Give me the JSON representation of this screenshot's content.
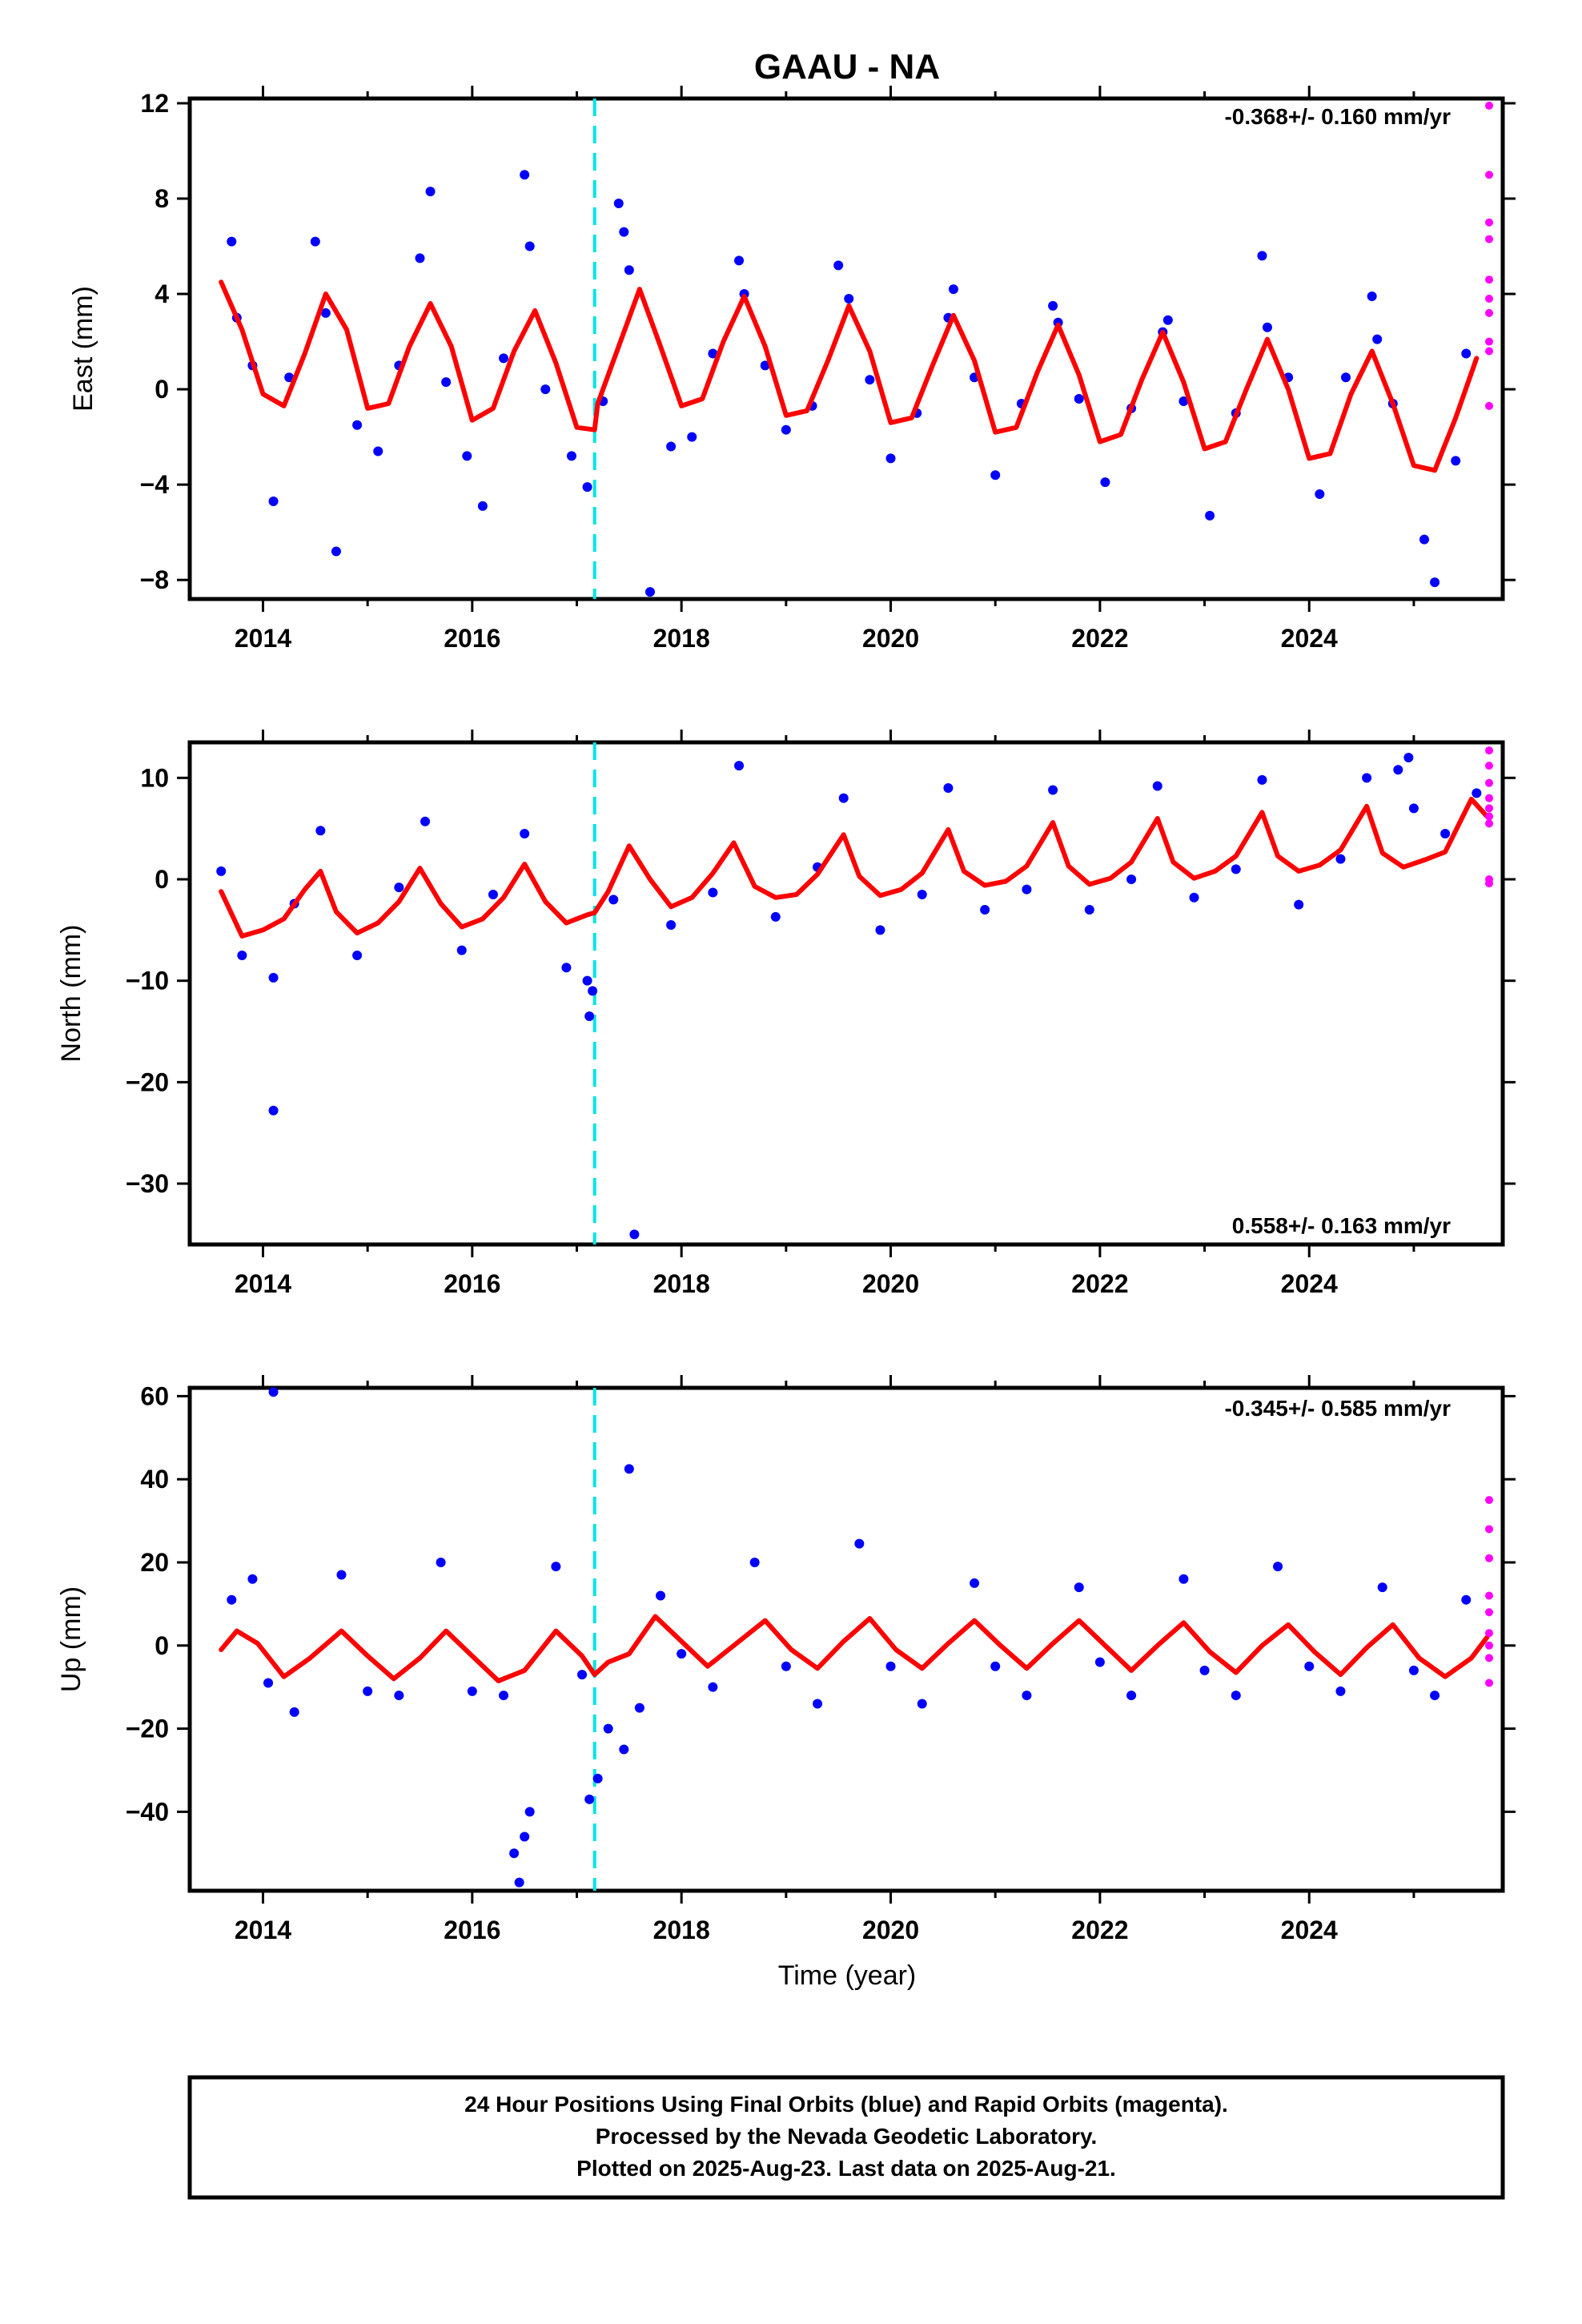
{
  "title": "GAAU - NA",
  "xlabel": "Time (year)",
  "x_tick_labels": [
    "2014",
    "2016",
    "2018",
    "2020",
    "2022",
    "2024"
  ],
  "footer": {
    "line1": "24 Hour Positions Using Final Orbits (blue) and Rapid Orbits (magenta).",
    "line2": "Processed by the Nevada Geodetic Laboratory.",
    "line3": "Plotted on 2025-Aug-23. Last data on 2025-Aug-21."
  },
  "colors": {
    "final_orbits": "#0000ff",
    "rapid_orbits": "#ff00ff",
    "model_fit": "#ff0000",
    "event_line": "#00e5e5"
  },
  "chart_data": [
    {
      "type": "scatter",
      "ylabel": "East (mm)",
      "rate_text": "-0.368+/- 0.160 mm/yr",
      "xlim": [
        2013.3,
        2025.85
      ],
      "ylim": [
        -8.8,
        12.2
      ],
      "y_ticks": [
        -8,
        -4,
        0,
        4,
        8,
        12
      ],
      "y_tick_labels": [
        "−8",
        "−4",
        "0",
        "4",
        "8",
        "12"
      ],
      "x_ticks": [
        2014,
        2016,
        2018,
        2020,
        2022,
        2024
      ],
      "event_x": 2017.17,
      "fit": {
        "name": "model",
        "x": [
          2013.6,
          2013.8,
          2014.0,
          2014.2,
          2014.4,
          2014.6,
          2014.8,
          2015.0,
          2015.2,
          2015.4,
          2015.6,
          2015.8,
          2016.0,
          2016.2,
          2016.4,
          2016.6,
          2016.8,
          2017.0,
          2017.17,
          2017.2,
          2017.4,
          2017.6,
          2017.8,
          2018.0,
          2018.2,
          2018.4,
          2018.6,
          2018.8,
          2019.0,
          2019.2,
          2019.4,
          2019.6,
          2019.8,
          2020.0,
          2020.2,
          2020.4,
          2020.6,
          2020.8,
          2021.0,
          2021.2,
          2021.4,
          2021.6,
          2021.8,
          2022.0,
          2022.2,
          2022.4,
          2022.6,
          2022.8,
          2023.0,
          2023.2,
          2023.4,
          2023.6,
          2023.8,
          2024.0,
          2024.2,
          2024.4,
          2024.6,
          2024.8,
          2025.0,
          2025.2,
          2025.4,
          2025.6
        ],
        "y": [
          4.5,
          2.5,
          -0.2,
          -0.7,
          1.5,
          4.0,
          2.5,
          -0.8,
          -0.6,
          1.8,
          3.6,
          1.8,
          -1.3,
          -0.8,
          1.6,
          3.3,
          1.1,
          -1.6,
          -1.7,
          -0.6,
          1.8,
          4.2,
          1.8,
          -0.7,
          -0.4,
          2.0,
          3.9,
          1.8,
          -1.1,
          -0.9,
          1.2,
          3.5,
          1.6,
          -1.4,
          -1.2,
          1.0,
          3.1,
          1.2,
          -1.8,
          -1.6,
          0.7,
          2.7,
          0.6,
          -2.2,
          -1.9,
          0.4,
          2.4,
          0.3,
          -2.5,
          -2.2,
          0.0,
          2.1,
          0.0,
          -2.9,
          -2.7,
          -0.2,
          1.6,
          -0.6,
          -3.2,
          -3.4,
          -1.2,
          1.3
        ]
      },
      "final_points": {
        "name": "final orbits",
        "x": [
          2013.7,
          2013.75,
          2013.9,
          2014.1,
          2014.25,
          2014.5,
          2014.6,
          2014.7,
          2014.9,
          2015.1,
          2015.3,
          2015.5,
          2015.6,
          2015.75,
          2015.95,
          2016.1,
          2016.3,
          2016.5,
          2016.55,
          2016.7,
          2016.95,
          2017.1,
          2017.25,
          2017.4,
          2017.45,
          2017.5,
          2017.7,
          2017.9,
          2018.1,
          2018.3,
          2018.55,
          2018.6,
          2018.8,
          2019.0,
          2019.25,
          2019.5,
          2019.6,
          2019.8,
          2020.0,
          2020.25,
          2020.55,
          2020.6,
          2020.8,
          2021.0,
          2021.25,
          2021.55,
          2021.6,
          2021.8,
          2022.05,
          2022.3,
          2022.6,
          2022.65,
          2022.8,
          2023.05,
          2023.3,
          2023.55,
          2023.6,
          2023.8,
          2024.1,
          2024.35,
          2024.6,
          2024.65,
          2024.8,
          2025.1,
          2025.2,
          2025.4,
          2025.5
        ],
        "y": [
          6.2,
          3.0,
          1.0,
          -4.7,
          0.5,
          6.2,
          3.2,
          -6.8,
          -1.5,
          -2.6,
          1.0,
          5.5,
          8.3,
          0.3,
          -2.8,
          -4.9,
          1.3,
          9.0,
          6.0,
          0.0,
          -2.8,
          -4.1,
          -0.5,
          7.8,
          6.6,
          5.0,
          -8.5,
          -2.4,
          -2.0,
          1.5,
          5.4,
          4.0,
          1.0,
          -1.7,
          -0.7,
          5.2,
          3.8,
          0.4,
          -2.9,
          -1.0,
          3.0,
          4.2,
          0.5,
          -3.6,
          -0.6,
          3.5,
          2.8,
          -0.4,
          -3.9,
          -0.8,
          2.4,
          2.9,
          -0.5,
          -5.3,
          -1.0,
          5.6,
          2.6,
          0.5,
          -4.4,
          0.5,
          3.9,
          2.1,
          -0.6,
          -6.3,
          -8.1,
          -3.0,
          1.5
        ]
      },
      "rapid_points": {
        "name": "rapid orbits",
        "x": [
          2025.72,
          2025.72,
          2025.72,
          2025.72,
          2025.72,
          2025.72,
          2025.72,
          2025.72,
          2025.72,
          2025.72
        ],
        "y": [
          11.9,
          9.0,
          7.0,
          6.3,
          4.6,
          3.8,
          3.2,
          2.0,
          1.6,
          -0.7
        ]
      }
    },
    {
      "type": "scatter",
      "ylabel": "North (mm)",
      "rate_text": "0.558+/- 0.163 mm/yr",
      "xlim": [
        2013.3,
        2025.85
      ],
      "ylim": [
        -36,
        13.5
      ],
      "y_ticks": [
        -30,
        -20,
        -10,
        0,
        10
      ],
      "y_tick_labels": [
        "−30",
        "−20",
        "−10",
        "0",
        "10"
      ],
      "x_ticks": [
        2014,
        2016,
        2018,
        2020,
        2022,
        2024
      ],
      "event_x": 2017.17,
      "fit": {
        "name": "model",
        "x": [
          2013.6,
          2013.8,
          2014.0,
          2014.2,
          2014.4,
          2014.55,
          2014.7,
          2014.9,
          2015.1,
          2015.3,
          2015.5,
          2015.7,
          2015.9,
          2016.1,
          2016.3,
          2016.5,
          2016.7,
          2016.9,
          2017.1,
          2017.17,
          2017.3,
          2017.5,
          2017.7,
          2017.9,
          2018.1,
          2018.3,
          2018.5,
          2018.7,
          2018.9,
          2019.1,
          2019.3,
          2019.55,
          2019.7,
          2019.9,
          2020.1,
          2020.3,
          2020.55,
          2020.7,
          2020.9,
          2021.1,
          2021.3,
          2021.55,
          2021.7,
          2021.9,
          2022.1,
          2022.3,
          2022.55,
          2022.7,
          2022.9,
          2023.1,
          2023.3,
          2023.55,
          2023.7,
          2023.9,
          2024.1,
          2024.3,
          2024.55,
          2024.7,
          2024.9,
          2025.1,
          2025.3,
          2025.55,
          2025.7
        ],
        "y": [
          -1.2,
          -5.6,
          -5.0,
          -3.9,
          -1.0,
          0.8,
          -3.2,
          -5.3,
          -4.3,
          -2.2,
          1.1,
          -2.4,
          -4.7,
          -3.9,
          -1.8,
          1.5,
          -2.2,
          -4.3,
          -3.5,
          -3.3,
          -1.2,
          3.3,
          0.0,
          -2.7,
          -1.8,
          0.6,
          3.6,
          -0.7,
          -1.8,
          -1.5,
          0.5,
          4.4,
          0.3,
          -1.6,
          -1.0,
          0.6,
          4.9,
          0.8,
          -0.6,
          -0.2,
          1.3,
          5.6,
          1.3,
          -0.5,
          0.1,
          1.7,
          6.0,
          1.7,
          0.1,
          0.8,
          2.3,
          6.6,
          2.3,
          0.8,
          1.4,
          2.9,
          7.2,
          2.6,
          1.2,
          1.9,
          2.7,
          7.9,
          6.2
        ]
      },
      "final_points": {
        "name": "final orbits",
        "x": [
          2013.6,
          2013.8,
          2014.1,
          2014.1,
          2014.3,
          2014.55,
          2014.9,
          2015.3,
          2015.55,
          2015.9,
          2016.2,
          2016.5,
          2016.9,
          2017.1,
          2017.12,
          2017.15,
          2017.35,
          2017.55,
          2017.9,
          2018.3,
          2018.55,
          2018.9,
          2019.3,
          2019.55,
          2019.9,
          2020.3,
          2020.55,
          2020.9,
          2021.3,
          2021.55,
          2021.9,
          2022.3,
          2022.55,
          2022.9,
          2023.3,
          2023.55,
          2023.9,
          2024.3,
          2024.55,
          2024.85,
          2024.95,
          2025.0,
          2025.3,
          2025.6
        ],
        "y": [
          0.8,
          -7.5,
          -9.7,
          -22.8,
          -2.4,
          4.8,
          -7.5,
          -0.8,
          5.7,
          -7.0,
          -1.5,
          4.5,
          -8.7,
          -10.0,
          -13.5,
          -11.0,
          -2.0,
          -35.0,
          -4.5,
          -1.3,
          11.2,
          -3.7,
          1.2,
          8.0,
          -5.0,
          -1.5,
          9.0,
          -3.0,
          -1.0,
          8.8,
          -3.0,
          0.0,
          9.2,
          -1.8,
          1.0,
          9.8,
          -2.5,
          2.0,
          10.0,
          10.8,
          12.0,
          7.0,
          4.5,
          8.5
        ]
      },
      "rapid_points": {
        "name": "rapid orbits",
        "x": [
          2025.72,
          2025.72,
          2025.72,
          2025.72,
          2025.72,
          2025.72,
          2025.72,
          2025.72,
          2025.72
        ],
        "y": [
          12.7,
          11.2,
          9.5,
          8.0,
          7.0,
          6.2,
          5.5,
          0.0,
          -0.4
        ]
      }
    },
    {
      "type": "scatter",
      "ylabel": "Up (mm)",
      "rate_text": "-0.345+/- 0.585 mm/yr",
      "xlim": [
        2013.3,
        2025.85
      ],
      "ylim": [
        -59,
        62
      ],
      "y_ticks": [
        -40,
        -20,
        0,
        20,
        40,
        60
      ],
      "y_tick_labels": [
        "−40",
        "−20",
        "0",
        "20",
        "40",
        "60"
      ],
      "x_ticks": [
        2014,
        2016,
        2018,
        2020,
        2022,
        2024
      ],
      "event_x": 2017.17,
      "fit": {
        "name": "model",
        "x": [
          2013.6,
          2013.75,
          2013.95,
          2014.2,
          2014.45,
          2014.75,
          2015.0,
          2015.25,
          2015.5,
          2015.75,
          2016.0,
          2016.25,
          2016.5,
          2016.8,
          2017.05,
          2017.17,
          2017.3,
          2017.5,
          2017.75,
          2018.0,
          2018.25,
          2018.5,
          2018.8,
          2019.05,
          2019.3,
          2019.55,
          2019.8,
          2020.05,
          2020.3,
          2020.55,
          2020.8,
          2021.05,
          2021.3,
          2021.55,
          2021.8,
          2022.05,
          2022.3,
          2022.55,
          2022.8,
          2023.05,
          2023.3,
          2023.55,
          2023.8,
          2024.05,
          2024.3,
          2024.55,
          2024.8,
          2025.05,
          2025.3,
          2025.55,
          2025.7
        ],
        "y": [
          -1.0,
          3.5,
          0.5,
          -7.5,
          -3.0,
          3.5,
          -2.5,
          -8.0,
          -3.0,
          3.5,
          -2.5,
          -8.5,
          -6.0,
          3.5,
          -2.5,
          -7.0,
          -4.0,
          -2.0,
          7.0,
          1.0,
          -5.0,
          0.0,
          6.0,
          -1.0,
          -5.5,
          1.0,
          6.5,
          -1.0,
          -5.5,
          0.5,
          6.0,
          0.0,
          -5.5,
          0.5,
          6.0,
          0.0,
          -6.0,
          0.0,
          5.5,
          -1.5,
          -6.5,
          0.0,
          5.0,
          -1.5,
          -7.0,
          -0.5,
          5.0,
          -3.0,
          -7.5,
          -3.0,
          2.0
        ]
      },
      "final_points": {
        "name": "final orbits",
        "x": [
          2013.7,
          2013.9,
          2014.05,
          2014.1,
          2014.3,
          2014.75,
          2015.0,
          2015.3,
          2015.7,
          2016.0,
          2016.3,
          2016.4,
          2016.45,
          2016.5,
          2016.55,
          2016.8,
          2017.05,
          2017.12,
          2017.2,
          2017.3,
          2017.45,
          2017.5,
          2017.6,
          2017.8,
          2018.0,
          2018.3,
          2018.7,
          2019.0,
          2019.3,
          2019.7,
          2020.0,
          2020.3,
          2020.8,
          2021.0,
          2021.3,
          2021.8,
          2022.0,
          2022.3,
          2022.8,
          2023.0,
          2023.3,
          2023.7,
          2024.0,
          2024.3,
          2024.7,
          2025.0,
          2025.2,
          2025.5
        ],
        "y": [
          11.0,
          16.0,
          -9.0,
          61.0,
          -16.0,
          17.0,
          -11.0,
          -12.0,
          20.0,
          -11.0,
          -12.0,
          -50.0,
          -57.0,
          -46.0,
          -40.0,
          19.0,
          -7.0,
          -37.0,
          -32.0,
          -20.0,
          -25.0,
          42.5,
          -15.0,
          12.0,
          -2.0,
          -10.0,
          20.0,
          -5.0,
          -14.0,
          24.5,
          -5.0,
          -14.0,
          15.0,
          -5.0,
          -12.0,
          14.0,
          -4.0,
          -12.0,
          16.0,
          -6.0,
          -12.0,
          19.0,
          -5.0,
          -11.0,
          14.0,
          -6.0,
          -12.0,
          11.0
        ]
      },
      "rapid_points": {
        "name": "rapid orbits",
        "x": [
          2025.72,
          2025.72,
          2025.72,
          2025.72,
          2025.72,
          2025.72,
          2025.72,
          2025.72,
          2025.72
        ],
        "y": [
          35.0,
          28.0,
          21.0,
          12.0,
          8.0,
          3.0,
          0.0,
          -3.0,
          -9.0
        ]
      }
    }
  ]
}
